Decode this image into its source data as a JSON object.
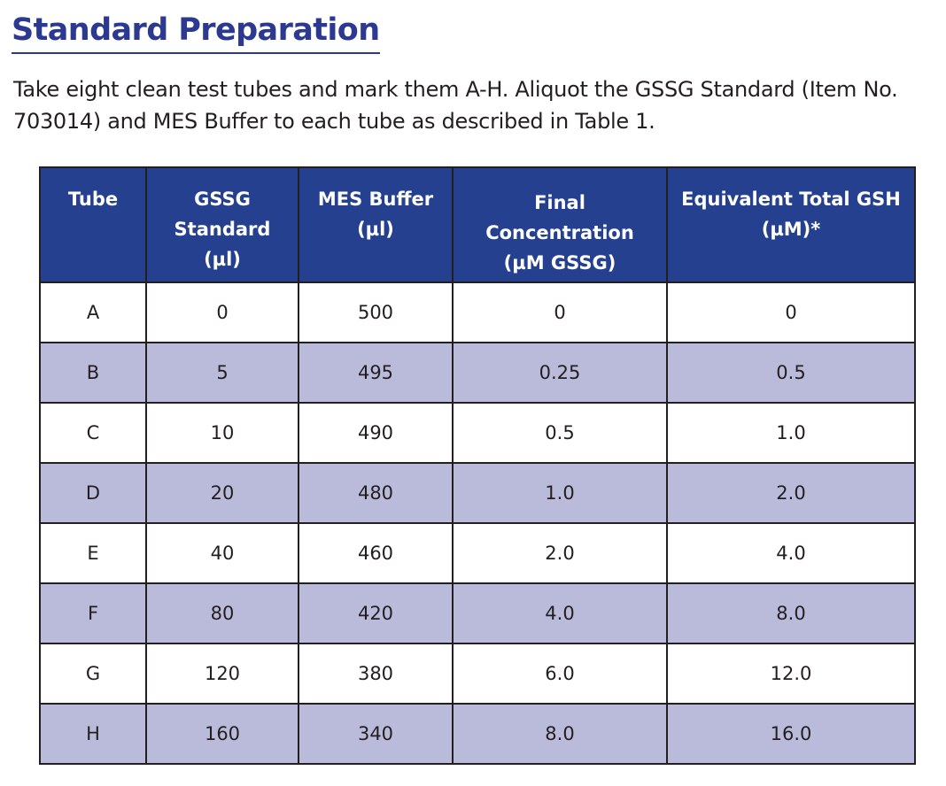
{
  "heading": "Standard Preparation",
  "intro": "Take eight clean test tubes and mark them A-H. Aliquot the GSSG Standard (Item No. 703014) and MES Buffer to each tube as described in Table 1.",
  "table": {
    "headers": {
      "tube": [
        "Tube"
      ],
      "gssg": [
        "GSSG",
        "Standard",
        "(µl)"
      ],
      "mes": [
        "MES Buffer",
        "(µl)"
      ],
      "final": [
        "Final",
        "Concentration",
        "(µM GSSG)"
      ],
      "gsh": [
        "Equivalent Total GSH",
        "(µM)*"
      ]
    },
    "rows": [
      {
        "tube": "A",
        "gssg": "0",
        "mes": "500",
        "final": "0",
        "gsh": "0"
      },
      {
        "tube": "B",
        "gssg": "5",
        "mes": "495",
        "final": "0.25",
        "gsh": "0.5"
      },
      {
        "tube": "C",
        "gssg": "10",
        "mes": "490",
        "final": "0.5",
        "gsh": "1.0"
      },
      {
        "tube": "D",
        "gssg": "20",
        "mes": "480",
        "final": "1.0",
        "gsh": "2.0"
      },
      {
        "tube": "E",
        "gssg": "40",
        "mes": "460",
        "final": "2.0",
        "gsh": "4.0"
      },
      {
        "tube": "F",
        "gssg": "80",
        "mes": "420",
        "final": "4.0",
        "gsh": "8.0"
      },
      {
        "tube": "G",
        "gssg": "120",
        "mes": "380",
        "final": "6.0",
        "gsh": "12.0"
      },
      {
        "tube": "H",
        "gssg": "160",
        "mes": "340",
        "final": "8.0",
        "gsh": "16.0"
      }
    ]
  },
  "colors": {
    "heading": "#2b3990",
    "header_fill": "#25408f",
    "shaded_row": "#babbda"
  }
}
